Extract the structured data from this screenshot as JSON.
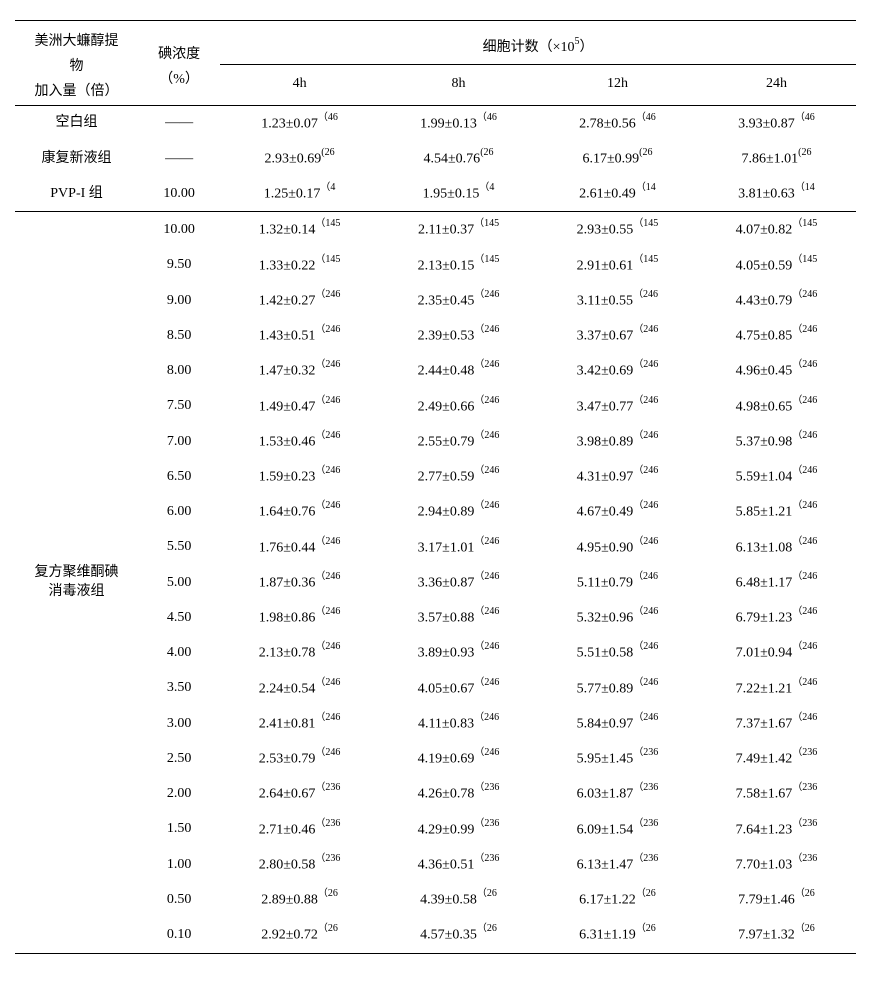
{
  "table": {
    "headers": {
      "col1_line1": "美洲大蠊醇提",
      "col1_line2": "物",
      "col1_line3": "加入量（倍）",
      "col2_line1": "碘浓度",
      "col2_line2": "（%）",
      "cell_count_header": "细胞计数（×10",
      "cell_count_exp": "5",
      "cell_count_close": "）",
      "time_4h": "4h",
      "time_8h": "8h",
      "time_12h": "12h",
      "time_24h": "24h"
    },
    "groups": {
      "blank": "空白组",
      "kangfuxin": "康复新液组",
      "pvpi": "PVP-I 组",
      "compound_line1": "复方聚维酮碘",
      "compound_line2": "消毒液组"
    },
    "control_rows": [
      {
        "group": "空白组",
        "conc": "——",
        "c4h": "1.23±0.07",
        "s4h": "（46",
        "c8h": "1.99±0.13",
        "s8h": "（46",
        "c12h": "2.78±0.56",
        "s12h": "（46",
        "c24h": "3.93±0.87",
        "s24h": "（46"
      },
      {
        "group": "康复新液组",
        "conc": "——",
        "c4h": "2.93±0.69",
        "s4h": "(26",
        "c8h": "4.54±0.76",
        "s8h": "(26",
        "c12h": "6.17±0.99",
        "s12h": "(26",
        "c24h": "7.86±1.01",
        "s24h": "(26"
      },
      {
        "group": "PVP-I 组",
        "conc": "10.00",
        "c4h": "1.25±0.17",
        "s4h": "（4",
        "c8h": "1.95±0.15",
        "s8h": "（4",
        "c12h": "2.61±0.49",
        "s12h": "（14",
        "c24h": "3.81±0.63",
        "s24h": "（14"
      }
    ],
    "compound_rows": [
      {
        "conc": "10.00",
        "c4h": "1.32±0.14",
        "s4h": "（145",
        "c8h": "2.11±0.37",
        "s8h": "（145",
        "c12h": "2.93±0.55",
        "s12h": "（145",
        "c24h": "4.07±0.82",
        "s24h": "（145"
      },
      {
        "conc": "9.50",
        "c4h": "1.33±0.22",
        "s4h": "（145",
        "c8h": "2.13±0.15",
        "s8h": "（145",
        "c12h": "2.91±0.61",
        "s12h": "（145",
        "c24h": "4.05±0.59",
        "s24h": "（145"
      },
      {
        "conc": "9.00",
        "c4h": "1.42±0.27",
        "s4h": "（246",
        "c8h": "2.35±0.45",
        "s8h": "（246",
        "c12h": "3.11±0.55",
        "s12h": "（246",
        "c24h": "4.43±0.79",
        "s24h": "（246"
      },
      {
        "conc": "8.50",
        "c4h": "1.43±0.51",
        "s4h": "（246",
        "c8h": "2.39±0.53",
        "s8h": "（246",
        "c12h": "3.37±0.67",
        "s12h": "（246",
        "c24h": "4.75±0.85",
        "s24h": "（246"
      },
      {
        "conc": "8.00",
        "c4h": "1.47±0.32",
        "s4h": "（246",
        "c8h": "2.44±0.48",
        "s8h": "（246",
        "c12h": "3.42±0.69",
        "s12h": "（246",
        "c24h": "4.96±0.45",
        "s24h": "（246"
      },
      {
        "conc": "7.50",
        "c4h": "1.49±0.47",
        "s4h": "（246",
        "c8h": "2.49±0.66",
        "s8h": "（246",
        "c12h": "3.47±0.77",
        "s12h": "（246",
        "c24h": "4.98±0.65",
        "s24h": "（246"
      },
      {
        "conc": "7.00",
        "c4h": "1.53±0.46",
        "s4h": "（246",
        "c8h": "2.55±0.79",
        "s8h": "（246",
        "c12h": "3.98±0.89",
        "s12h": "（246",
        "c24h": "5.37±0.98",
        "s24h": "（246"
      },
      {
        "conc": "6.50",
        "c4h": "1.59±0.23",
        "s4h": "（246",
        "c8h": "2.77±0.59",
        "s8h": "（246",
        "c12h": "4.31±0.97",
        "s12h": "（246",
        "c24h": "5.59±1.04",
        "s24h": "（246"
      },
      {
        "conc": "6.00",
        "c4h": "1.64±0.76",
        "s4h": "（246",
        "c8h": "2.94±0.89",
        "s8h": "（246",
        "c12h": "4.67±0.49",
        "s12h": "（246",
        "c24h": "5.85±1.21",
        "s24h": "（246"
      },
      {
        "conc": "5.50",
        "c4h": "1.76±0.44",
        "s4h": "（246",
        "c8h": "3.17±1.01",
        "s8h": "（246",
        "c12h": "4.95±0.90",
        "s12h": "（246",
        "c24h": "6.13±1.08",
        "s24h": "（246"
      },
      {
        "conc": "5.00",
        "c4h": "1.87±0.36",
        "s4h": "（246",
        "c8h": "3.36±0.87",
        "s8h": "（246",
        "c12h": "5.11±0.79",
        "s12h": "（246",
        "c24h": "6.48±1.17",
        "s24h": "（246"
      },
      {
        "conc": "4.50",
        "c4h": "1.98±0.86",
        "s4h": "（246",
        "c8h": "3.57±0.88",
        "s8h": "（246",
        "c12h": "5.32±0.96",
        "s12h": "（246",
        "c24h": "6.79±1.23",
        "s24h": "（246"
      },
      {
        "conc": "4.00",
        "c4h": "2.13±0.78",
        "s4h": "（246",
        "c8h": "3.89±0.93",
        "s8h": "（246",
        "c12h": "5.51±0.58",
        "s12h": "（246",
        "c24h": "7.01±0.94",
        "s24h": "（246"
      },
      {
        "conc": "3.50",
        "c4h": "2.24±0.54",
        "s4h": "（246",
        "c8h": "4.05±0.67",
        "s8h": "（246",
        "c12h": "5.77±0.89",
        "s12h": "（246",
        "c24h": "7.22±1.21",
        "s24h": "（246"
      },
      {
        "conc": "3.00",
        "c4h": "2.41±0.81",
        "s4h": "（246",
        "c8h": "4.11±0.83",
        "s8h": "（246",
        "c12h": "5.84±0.97",
        "s12h": "（246",
        "c24h": "7.37±1.67",
        "s24h": "（246"
      },
      {
        "conc": "2.50",
        "c4h": "2.53±0.79",
        "s4h": "（246",
        "c8h": "4.19±0.69",
        "s8h": "（246",
        "c12h": "5.95±1.45",
        "s12h": "（236",
        "c24h": "7.49±1.42",
        "s24h": "（236"
      },
      {
        "conc": "2.00",
        "c4h": "2.64±0.67",
        "s4h": "（236",
        "c8h": "4.26±0.78",
        "s8h": "（236",
        "c12h": "6.03±1.87",
        "s12h": "（236",
        "c24h": "7.58±1.67",
        "s24h": "（236"
      },
      {
        "conc": "1.50",
        "c4h": "2.71±0.46",
        "s4h": "（236",
        "c8h": "4.29±0.99",
        "s8h": "（236",
        "c12h": "6.09±1.54",
        "s12h": "（236",
        "c24h": "7.64±1.23",
        "s24h": "（236"
      },
      {
        "conc": "1.00",
        "c4h": "2.80±0.58",
        "s4h": "（236",
        "c8h": "4.36±0.51",
        "s8h": "（236",
        "c12h": "6.13±1.47",
        "s12h": "（236",
        "c24h": "7.70±1.03",
        "s24h": "（236"
      },
      {
        "conc": "0.50",
        "c4h": "2.89±0.88",
        "s4h": "（26",
        "c8h": "4.39±0.58",
        "s8h": "（26",
        "c12h": "6.17±1.22",
        "s12h": "（26",
        "c24h": "7.79±1.46",
        "s24h": "（26"
      },
      {
        "conc": "0.10",
        "c4h": "2.92±0.72",
        "s4h": "（26",
        "c8h": "4.57±0.35",
        "s8h": "（26",
        "c12h": "6.31±1.19",
        "s12h": "（26",
        "c24h": "7.97±1.32",
        "s24h": "（26"
      }
    ]
  }
}
